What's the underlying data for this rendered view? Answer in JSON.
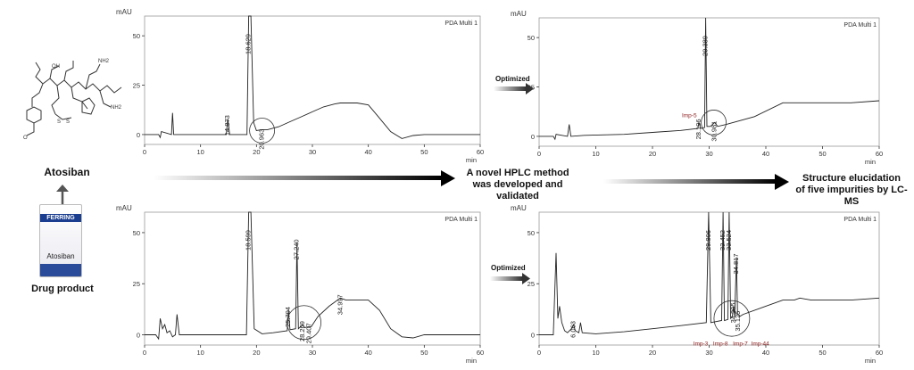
{
  "figure": {
    "drug_name": "Atosiban",
    "drug_product_label": "Drug product",
    "box_brand": "FERRING",
    "box_name": "Atosiban",
    "arrow_middle_text": "A novel HPLC method\nwas developed and validated",
    "arrow_right_text": "Structure elucidation\nof five impurities by LC-MS",
    "optimized_label": "Optimized",
    "colors": {
      "trace": "#222222",
      "impurity_label": "#8b1a1a",
      "arrow": "#000000"
    }
  },
  "chart_data": [
    {
      "id": "top-left",
      "type": "line",
      "detector": "PDA Multi 1",
      "y_unit": "mAU",
      "xlabel": "min",
      "xlim": [
        0,
        60
      ],
      "ylim": [
        -5,
        60
      ],
      "x_ticks": [
        0,
        10,
        20,
        30,
        40,
        50,
        60
      ],
      "y_ticks": [
        0,
        25,
        50
      ],
      "peaks": [
        {
          "label": "14.873",
          "x": 14.873,
          "y": 8
        },
        {
          "label": "18.629",
          "x": 18.629,
          "y": 60
        },
        {
          "label": "20.963",
          "x": 20.963,
          "y": 1
        }
      ],
      "impurity_labels": [],
      "series": [
        {
          "x": [
            0,
            2.5,
            2.8,
            3,
            4.8,
            5,
            5.2,
            8,
            14.6,
            14.873,
            15.2,
            18.3,
            18.6,
            19.0,
            19.5,
            20,
            20.963,
            22,
            24,
            26,
            28,
            30,
            32,
            34,
            35,
            38,
            40,
            41.5,
            44,
            46,
            48,
            50,
            55,
            60
          ],
          "y": [
            0,
            0,
            -1.5,
            1.5,
            0,
            11,
            0,
            0,
            0,
            8,
            0,
            0,
            60,
            60,
            6,
            2,
            2.5,
            2.5,
            4,
            6.5,
            9,
            11.5,
            14,
            15.5,
            16,
            16,
            15,
            10,
            1.5,
            -2,
            -0.5,
            0,
            0,
            0
          ]
        }
      ]
    },
    {
      "id": "top-right",
      "type": "line",
      "detector": "PDA Multi 1",
      "y_unit": "mAU",
      "xlabel": "min",
      "xlim": [
        0,
        60
      ],
      "ylim": [
        -5,
        60
      ],
      "x_ticks": [
        0,
        10,
        20,
        30,
        40,
        50,
        60
      ],
      "y_ticks": [
        0,
        25,
        50
      ],
      "peaks": [
        {
          "label": "28.196",
          "x": 28.196,
          "y": 7
        },
        {
          "label": "29.389",
          "x": 29.389,
          "y": 60
        },
        {
          "label": "30.981",
          "x": 30.981,
          "y": 6
        }
      ],
      "impurity_labels": [
        {
          "label": "Imp-5",
          "x": 26.5,
          "y": 11
        }
      ],
      "series": [
        {
          "x": [
            0,
            2.5,
            2.8,
            3,
            5,
            5.3,
            5.6,
            8,
            15,
            20,
            25,
            28,
            28.196,
            28.5,
            29.2,
            29.389,
            29.6,
            30.2,
            30.981,
            31.5,
            33,
            38,
            43,
            50,
            55,
            60
          ],
          "y": [
            0,
            0,
            -1.5,
            1,
            0,
            6,
            0,
            0.5,
            1,
            2,
            3,
            4,
            7,
            4,
            4.5,
            60,
            5,
            5,
            7,
            5,
            6,
            10,
            17,
            17,
            17,
            18
          ]
        }
      ]
    },
    {
      "id": "bottom-left",
      "type": "line",
      "detector": "PDA Multi 1",
      "y_unit": "mAU",
      "xlabel": "min",
      "xlim": [
        0,
        60
      ],
      "ylim": [
        -5,
        60
      ],
      "x_ticks": [
        0,
        10,
        20,
        30,
        40,
        50,
        60
      ],
      "y_ticks": [
        0,
        25,
        50
      ],
      "peaks": [
        {
          "label": "18.599",
          "x": 18.599,
          "y": 60
        },
        {
          "label": "25.704",
          "x": 25.704,
          "y": 12
        },
        {
          "label": "27.240",
          "x": 27.24,
          "y": 45
        },
        {
          "label": "28.269",
          "x": 28.269,
          "y": 5
        },
        {
          "label": "29.407",
          "x": 29.407,
          "y": 4
        },
        {
          "label": "34.997",
          "x": 34.997,
          "y": 18
        }
      ],
      "impurity_labels": [],
      "series": [
        {
          "x": [
            0,
            2,
            2.5,
            2.8,
            3.2,
            3.6,
            4,
            4.5,
            5,
            5.5,
            5.8,
            6.2,
            10,
            15,
            18.2,
            18.599,
            19.0,
            19.6,
            21,
            23,
            25.5,
            25.704,
            26,
            27.0,
            27.24,
            27.5,
            28.269,
            28.6,
            29.407,
            29.8,
            31,
            33,
            34.997,
            36,
            38,
            40,
            42,
            44,
            46,
            48,
            50,
            55,
            60
          ],
          "y": [
            0,
            0,
            -2,
            8,
            3,
            5,
            1,
            2,
            -1,
            0,
            10,
            0,
            0,
            0,
            0,
            60,
            60,
            3,
            0.5,
            1,
            2,
            12,
            2.5,
            3,
            45,
            3,
            5,
            3.5,
            4,
            4,
            9,
            14,
            18,
            17,
            17,
            17,
            12,
            3,
            -1,
            -1.5,
            0,
            0,
            0
          ]
        }
      ]
    },
    {
      "id": "bottom-right",
      "type": "line",
      "detector": "PDA Multi 1",
      "y_unit": "mAU",
      "xlabel": "min",
      "xlim": [
        0,
        60
      ],
      "ylim": [
        -5,
        60
      ],
      "x_ticks": [
        0,
        10,
        20,
        30,
        40,
        50,
        60
      ],
      "y_ticks": [
        0,
        25,
        50
      ],
      "peaks": [
        {
          "label": "6.063",
          "x": 6.063,
          "y": 5
        },
        {
          "label": "29.906",
          "x": 29.906,
          "y": 60
        },
        {
          "label": "32.452",
          "x": 32.452,
          "y": 60
        },
        {
          "label": "33.524",
          "x": 33.524,
          "y": 60
        },
        {
          "label": "34.817",
          "x": 34.817,
          "y": 38
        },
        {
          "label": "34.305",
          "x": 34.305,
          "y": 14
        },
        {
          "label": "35.125",
          "x": 35.125,
          "y": 10
        }
      ],
      "impurity_labels": [
        {
          "label": "Imp-3",
          "x": 28.5,
          "y": -4
        },
        {
          "label": "Imp-8",
          "x": 32.0,
          "y": -4
        },
        {
          "label": "Imp-7",
          "x": 35.5,
          "y": -4
        },
        {
          "label": "Imp-44",
          "x": 39.0,
          "y": -4
        }
      ],
      "series": [
        {
          "x": [
            0,
            2.5,
            3,
            3.3,
            3.6,
            4,
            4.5,
            5,
            5.7,
            6.063,
            6.4,
            7,
            7.3,
            7.6,
            10,
            15,
            20,
            25,
            29.5,
            29.906,
            30.3,
            32.2,
            32.452,
            32.7,
            33.3,
            33.524,
            33.8,
            34.1,
            34.305,
            34.5,
            34.817,
            35.0,
            35.125,
            35.4,
            36,
            40,
            43,
            45,
            46,
            48,
            50,
            55,
            60
          ],
          "y": [
            0,
            0,
            40,
            8,
            14,
            6,
            2,
            1,
            3,
            5,
            2,
            1,
            6,
            1,
            0.5,
            1.5,
            3,
            4.5,
            6,
            60,
            6,
            7,
            60,
            7,
            7.5,
            60,
            8,
            9,
            14,
            9,
            38,
            10,
            10,
            9,
            10,
            14,
            17,
            17,
            18,
            17,
            17,
            17,
            18
          ]
        }
      ]
    }
  ]
}
